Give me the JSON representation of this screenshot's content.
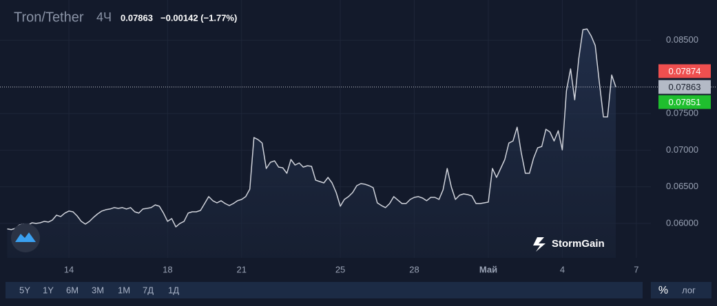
{
  "chart_data": {
    "type": "line",
    "title": "Tron/Tether",
    "interval": "4Ч",
    "last_price": 0.07863,
    "change": "−0.00142 (−1.77%)",
    "ask": 0.07874,
    "bid": 0.07851,
    "color": "#d1d4dc",
    "categories": [
      null,
      null,
      null,
      null,
      null,
      null,
      null,
      null,
      null,
      null,
      null,
      null,
      null,
      null,
      null,
      "14",
      null,
      null,
      null,
      null,
      null,
      null,
      null,
      null,
      null,
      null,
      null,
      null,
      null,
      null,
      null,
      null,
      null,
      null,
      null,
      null,
      null,
      null,
      null,
      "18",
      null,
      null,
      null,
      null,
      null,
      null,
      null,
      null,
      null,
      null,
      null,
      null,
      null,
      null,
      null,
      null,
      null,
      "21",
      null,
      null,
      null,
      null,
      null,
      null,
      null,
      null,
      null,
      null,
      null,
      null,
      null,
      null,
      null,
      null,
      null,
      null,
      null,
      null,
      null,
      null,
      null,
      "25",
      null,
      null,
      null,
      null,
      null,
      null,
      null,
      null,
      null,
      null,
      null,
      null,
      null,
      null,
      null,
      null,
      null,
      "28",
      null,
      null,
      null,
      null,
      null,
      null,
      null,
      null,
      null,
      null,
      null,
      null,
      null,
      null,
      null,
      null,
      null,
      "Май",
      null,
      null,
      null,
      null,
      null,
      null,
      null,
      null,
      null,
      null,
      null,
      null,
      null,
      null,
      null,
      null,
      null,
      "4",
      null,
      null,
      null,
      null,
      null,
      null,
      null,
      null,
      null,
      null,
      null,
      null,
      null,
      null,
      null,
      null,
      null,
      "7",
      null,
      null
    ],
    "values": [
      0.05925,
      0.05916,
      0.05934,
      0.05981,
      0.05991,
      0.05972,
      0.06009,
      0.06,
      0.06009,
      0.06028,
      0.06019,
      0.06047,
      0.06113,
      0.06094,
      0.06141,
      0.06169,
      0.06159,
      0.06103,
      0.06028,
      0.05991,
      0.06028,
      0.06084,
      0.06131,
      0.06169,
      0.06188,
      0.06197,
      0.06216,
      0.06206,
      0.06216,
      0.06197,
      0.06216,
      0.06159,
      0.06141,
      0.06197,
      0.06206,
      0.06216,
      0.06253,
      0.06235,
      0.06141,
      0.06028,
      0.06066,
      0.05953,
      0.06,
      0.06028,
      0.06141,
      0.06159,
      0.06159,
      0.06178,
      0.06272,
      0.06366,
      0.0631,
      0.06281,
      0.0631,
      0.06272,
      0.06244,
      0.06272,
      0.0631,
      0.06328,
      0.06366,
      0.06469,
      0.07173,
      0.07144,
      0.07097,
      0.0675,
      0.06835,
      0.06854,
      0.06769,
      0.0676,
      0.06685,
      0.06872,
      0.06797,
      0.06825,
      0.06769,
      0.06788,
      0.06779,
      0.06591,
      0.06572,
      0.06553,
      0.06628,
      0.06553,
      0.06422,
      0.06235,
      0.06328,
      0.06366,
      0.06422,
      0.06516,
      0.06544,
      0.06535,
      0.06516,
      0.06488,
      0.06281,
      0.06244,
      0.06216,
      0.06272,
      0.06366,
      0.06319,
      0.06272,
      0.06272,
      0.06328,
      0.06356,
      0.06366,
      0.06347,
      0.0631,
      0.06356,
      0.06356,
      0.06328,
      0.0646,
      0.0675,
      0.06497,
      0.06328,
      0.06385,
      0.06403,
      0.06394,
      0.06375,
      0.06272,
      0.06272,
      0.06281,
      0.06291,
      0.0675,
      0.06628,
      0.0675,
      0.06872,
      0.07097,
      0.07126,
      0.07313,
      0.06966,
      0.06685,
      0.06685,
      0.06891,
      0.07032,
      0.07051,
      0.07285,
      0.07248,
      0.07126,
      0.07266,
      0.07004,
      0.0781,
      0.0811,
      0.07688,
      0.08251,
      0.08645,
      0.08655,
      0.08561,
      0.08429,
      0.07923,
      0.07454,
      0.07454,
      0.08026,
      0.07863,
      null,
      null,
      null,
      null,
      null,
      null,
      null
    ],
    "ylim": [
      0.0553,
      0.0905
    ],
    "yticks": [
      {
        "value": 0.06,
        "label": "0.06000"
      },
      {
        "value": 0.065,
        "label": "0.06500"
      },
      {
        "value": 0.07,
        "label": "0.07000"
      },
      {
        "value": 0.075,
        "label": "0.07500"
      },
      {
        "value": 0.085,
        "label": "0.08500"
      }
    ],
    "grid": true
  },
  "brand": "StormGain",
  "ranges": [
    "5Y",
    "1Y",
    "6M",
    "3M",
    "1M",
    "7Д",
    "1Д"
  ],
  "scale_options": [
    "%",
    "лог"
  ]
}
